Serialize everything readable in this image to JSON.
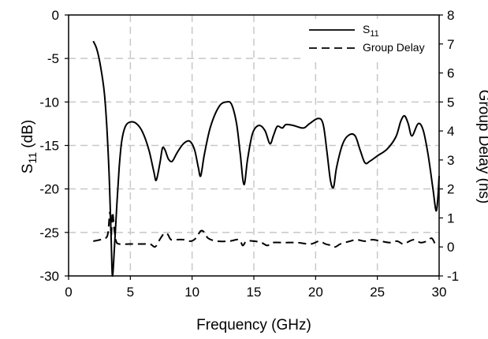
{
  "chart_data": {
    "type": "line",
    "title": "",
    "xlabel": "Frequency (GHz)",
    "ylabel_left": {
      "main": "S",
      "sub": "11",
      "tail": " (dB)"
    },
    "ylabel_right": "Group Delay (ns)",
    "xlim": [
      0,
      30
    ],
    "ylim_left": [
      -30,
      0
    ],
    "ylim_right": [
      -1,
      8
    ],
    "xticks": [
      "0",
      "5",
      "10",
      "15",
      "20",
      "25",
      "30"
    ],
    "yticks_left": [
      "0",
      "-5",
      "-10",
      "-15",
      "-20",
      "-25",
      "-30"
    ],
    "yticks_right": [
      "8",
      "7",
      "6",
      "5",
      "4",
      "3",
      "2",
      "1",
      "0",
      "-1"
    ],
    "grid": true,
    "legend_position": "top-right",
    "series": [
      {
        "name": "S11",
        "legend_main": "S",
        "legend_sub": "11",
        "axis": "left",
        "style": "solid",
        "color": "#000000",
        "points": [
          [
            2.0,
            -3.0
          ],
          [
            2.3,
            -4.0
          ],
          [
            2.6,
            -6.0
          ],
          [
            2.9,
            -9.0
          ],
          [
            3.1,
            -13.0
          ],
          [
            3.3,
            -19.0
          ],
          [
            3.45,
            -26.0
          ],
          [
            3.55,
            -30.0
          ],
          [
            3.7,
            -27.0
          ],
          [
            3.9,
            -22.0
          ],
          [
            4.1,
            -17.5
          ],
          [
            4.3,
            -14.5
          ],
          [
            4.6,
            -12.8
          ],
          [
            5.0,
            -12.3
          ],
          [
            5.5,
            -12.5
          ],
          [
            6.0,
            -13.5
          ],
          [
            6.5,
            -15.5
          ],
          [
            6.9,
            -18.0
          ],
          [
            7.1,
            -19.0
          ],
          [
            7.4,
            -17.0
          ],
          [
            7.6,
            -15.3
          ],
          [
            7.8,
            -15.5
          ],
          [
            8.1,
            -16.6
          ],
          [
            8.4,
            -16.8
          ],
          [
            8.8,
            -15.8
          ],
          [
            9.3,
            -14.8
          ],
          [
            9.8,
            -14.5
          ],
          [
            10.2,
            -15.5
          ],
          [
            10.5,
            -17.5
          ],
          [
            10.7,
            -18.5
          ],
          [
            11.0,
            -16.0
          ],
          [
            11.5,
            -12.8
          ],
          [
            12.2,
            -10.5
          ],
          [
            12.8,
            -10.0
          ],
          [
            13.2,
            -10.3
          ],
          [
            13.6,
            -12.5
          ],
          [
            13.9,
            -16.0
          ],
          [
            14.2,
            -19.5
          ],
          [
            14.5,
            -16.5
          ],
          [
            14.9,
            -13.6
          ],
          [
            15.4,
            -12.7
          ],
          [
            15.9,
            -13.3
          ],
          [
            16.3,
            -14.8
          ],
          [
            16.6,
            -13.8
          ],
          [
            16.9,
            -12.8
          ],
          [
            17.3,
            -13.0
          ],
          [
            17.6,
            -12.6
          ],
          [
            18.2,
            -12.7
          ],
          [
            19.0,
            -13.0
          ],
          [
            19.5,
            -12.5
          ],
          [
            20.2,
            -11.9
          ],
          [
            20.6,
            -12.5
          ],
          [
            20.9,
            -15.5
          ],
          [
            21.2,
            -19.0
          ],
          [
            21.45,
            -19.8
          ],
          [
            21.7,
            -17.5
          ],
          [
            22.2,
            -14.8
          ],
          [
            22.7,
            -13.8
          ],
          [
            23.2,
            -13.9
          ],
          [
            23.6,
            -15.5
          ],
          [
            24.0,
            -17.0
          ],
          [
            24.4,
            -16.8
          ],
          [
            25.0,
            -16.2
          ],
          [
            25.8,
            -15.4
          ],
          [
            26.5,
            -14.0
          ],
          [
            26.9,
            -12.2
          ],
          [
            27.2,
            -11.6
          ],
          [
            27.5,
            -12.5
          ],
          [
            27.8,
            -13.9
          ],
          [
            28.3,
            -12.5
          ],
          [
            28.7,
            -13.2
          ],
          [
            29.1,
            -16.0
          ],
          [
            29.5,
            -20.0
          ],
          [
            29.75,
            -22.5
          ],
          [
            29.9,
            -21.0
          ],
          [
            30.0,
            -18.5
          ]
        ]
      },
      {
        "name": "Group Delay",
        "axis": "right",
        "style": "dashed",
        "color": "#000000",
        "points": [
          [
            2.0,
            0.2
          ],
          [
            2.6,
            0.25
          ],
          [
            3.0,
            0.3
          ],
          [
            3.2,
            0.5
          ],
          [
            3.35,
            1.2
          ],
          [
            3.45,
            0.4
          ],
          [
            3.55,
            1.2
          ],
          [
            3.7,
            0.6
          ],
          [
            3.85,
            0.2
          ],
          [
            4.1,
            0.1
          ],
          [
            5.0,
            0.1
          ],
          [
            6.0,
            0.1
          ],
          [
            6.6,
            0.1
          ],
          [
            7.0,
            0.0
          ],
          [
            7.3,
            0.2
          ],
          [
            7.7,
            0.45
          ],
          [
            8.0,
            0.45
          ],
          [
            8.3,
            0.25
          ],
          [
            8.8,
            0.25
          ],
          [
            9.3,
            0.25
          ],
          [
            9.9,
            0.2
          ],
          [
            10.3,
            0.3
          ],
          [
            10.7,
            0.55
          ],
          [
            11.0,
            0.5
          ],
          [
            11.3,
            0.3
          ],
          [
            12.0,
            0.2
          ],
          [
            13.0,
            0.2
          ],
          [
            13.8,
            0.25
          ],
          [
            14.1,
            0.05
          ],
          [
            14.4,
            0.2
          ],
          [
            15.0,
            0.2
          ],
          [
            15.6,
            0.15
          ],
          [
            16.1,
            0.05
          ],
          [
            16.5,
            0.15
          ],
          [
            17.5,
            0.15
          ],
          [
            18.5,
            0.15
          ],
          [
            19.6,
            0.1
          ],
          [
            20.3,
            0.2
          ],
          [
            20.8,
            0.1
          ],
          [
            21.3,
            0.05
          ],
          [
            21.6,
            0.0
          ],
          [
            22.0,
            0.1
          ],
          [
            22.8,
            0.2
          ],
          [
            23.3,
            0.25
          ],
          [
            24.0,
            0.2
          ],
          [
            24.6,
            0.25
          ],
          [
            25.3,
            0.2
          ],
          [
            26.0,
            0.15
          ],
          [
            26.6,
            0.2
          ],
          [
            27.1,
            0.1
          ],
          [
            27.6,
            0.2
          ],
          [
            28.0,
            0.25
          ],
          [
            28.5,
            0.15
          ],
          [
            29.0,
            0.2
          ],
          [
            29.4,
            0.3
          ],
          [
            29.7,
            0.1
          ],
          [
            30.0,
            0.05
          ]
        ]
      }
    ]
  }
}
